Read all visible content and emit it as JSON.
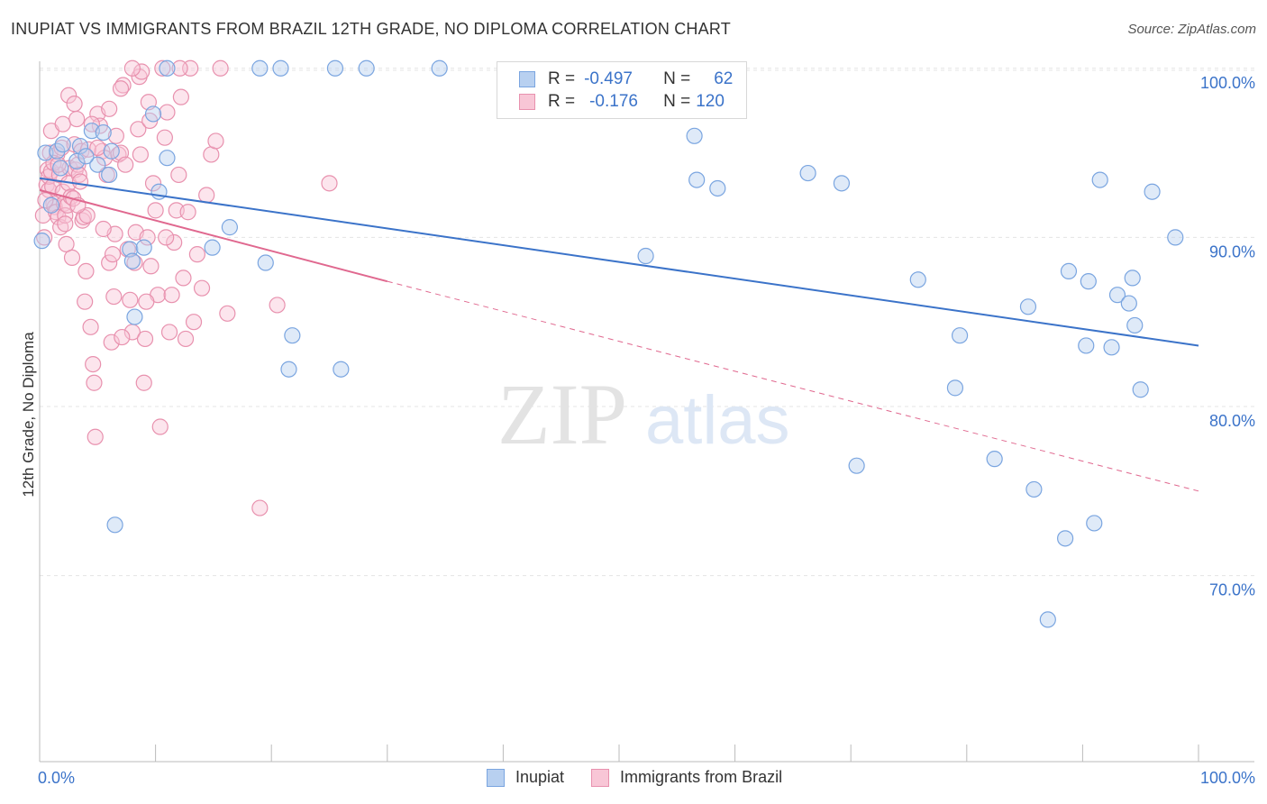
{
  "title": "INUPIAT VS IMMIGRANTS FROM BRAZIL 12TH GRADE, NO DIPLOMA CORRELATION CHART",
  "source": "Source: ZipAtlas.com",
  "legend_top": {
    "rows": [
      {
        "r_label": "R =",
        "r_value": "-0.497",
        "n_label": "N =",
        "n_value": "62"
      },
      {
        "r_label": "R =",
        "r_value": "-0.176",
        "n_label": "N =",
        "n_value": "120"
      }
    ]
  },
  "colors": {
    "inupiat_fill": "#b8d0f0",
    "inupiat_stroke": "#7aa5e0",
    "inupiat_line": "#3b73c9",
    "brazil_fill": "#f8c6d6",
    "brazil_stroke": "#e891ae",
    "brazil_line": "#e0688f",
    "value_text": "#3b73c9"
  },
  "chart_data": {
    "type": "scatter",
    "title": "INUPIAT VS IMMIGRANTS FROM BRAZIL 12TH GRADE, NO DIPLOMA CORRELATION CHART",
    "xlabel": "",
    "ylabel": "12th Grade, No Diploma",
    "xlim": [
      0,
      100
    ],
    "ylim": [
      59,
      101
    ],
    "x_tick_labels": [
      "0.0%",
      "100.0%"
    ],
    "y_ticks": [
      70,
      80,
      90,
      100
    ],
    "y_tick_labels": [
      "70.0%",
      "80.0%",
      "90.0%",
      "100.0%"
    ],
    "watermark": {
      "zip": "ZIP",
      "atlas": "atlas"
    },
    "series": [
      {
        "name": "Inupiat",
        "points": [
          [
            0.2,
            89.8
          ],
          [
            0.5,
            95.0
          ],
          [
            1.0,
            91.9
          ],
          [
            1.5,
            95.1
          ],
          [
            1.8,
            94.1
          ],
          [
            2.0,
            95.5
          ],
          [
            3.5,
            95.4
          ],
          [
            4.5,
            96.3
          ],
          [
            5.0,
            94.3
          ],
          [
            6.0,
            93.7
          ],
          [
            6.2,
            95.1
          ],
          [
            6.5,
            73.0
          ],
          [
            7.8,
            89.3
          ],
          [
            8.0,
            88.6
          ],
          [
            8.2,
            85.3
          ],
          [
            9.0,
            89.4
          ],
          [
            9.8,
            97.3
          ],
          [
            10.3,
            92.7
          ],
          [
            11.0,
            94.7
          ],
          [
            11.0,
            100.0
          ],
          [
            14.9,
            89.4
          ],
          [
            16.4,
            90.6
          ],
          [
            19.0,
            100.0
          ],
          [
            19.5,
            88.5
          ],
          [
            20.8,
            100.0
          ],
          [
            21.5,
            82.2
          ],
          [
            21.8,
            84.2
          ],
          [
            25.5,
            100.0
          ],
          [
            26.0,
            82.2
          ],
          [
            28.2,
            100.0
          ],
          [
            34.5,
            100.0
          ],
          [
            52.3,
            88.9
          ],
          [
            56.5,
            96.0
          ],
          [
            56.7,
            93.4
          ],
          [
            58.5,
            92.9
          ],
          [
            66.3,
            93.8
          ],
          [
            69.2,
            93.2
          ],
          [
            70.5,
            76.5
          ],
          [
            75.8,
            87.5
          ],
          [
            79.0,
            81.1
          ],
          [
            79.4,
            84.2
          ],
          [
            82.4,
            76.9
          ],
          [
            85.3,
            85.9
          ],
          [
            85.8,
            75.1
          ],
          [
            88.5,
            72.2
          ],
          [
            88.8,
            88.0
          ],
          [
            90.5,
            87.4
          ],
          [
            90.3,
            83.6
          ],
          [
            91.0,
            73.1
          ],
          [
            91.5,
            93.4
          ],
          [
            92.5,
            83.5
          ],
          [
            93.0,
            86.6
          ],
          [
            94.0,
            86.1
          ],
          [
            94.5,
            84.8
          ],
          [
            94.3,
            87.6
          ],
          [
            95.0,
            81.0
          ],
          [
            98.0,
            90.0
          ],
          [
            96.0,
            92.7
          ],
          [
            87.0,
            67.4
          ],
          [
            3.2,
            94.5
          ],
          [
            5.5,
            96.2
          ],
          [
            4.0,
            94.8
          ]
        ]
      },
      {
        "name": "Immigrants from Brazil",
        "points": [
          [
            0.3,
            91.3
          ],
          [
            0.4,
            90.0
          ],
          [
            0.6,
            93.1
          ],
          [
            0.7,
            94.0
          ],
          [
            0.8,
            92.8
          ],
          [
            0.8,
            93.6
          ],
          [
            0.9,
            95.0
          ],
          [
            1.0,
            93.9
          ],
          [
            1.1,
            93.0
          ],
          [
            1.2,
            92.0
          ],
          [
            1.3,
            91.8
          ],
          [
            1.4,
            91.5
          ],
          [
            1.5,
            94.9
          ],
          [
            1.6,
            91.2
          ],
          [
            1.7,
            93.7
          ],
          [
            1.8,
            90.6
          ],
          [
            1.9,
            95.3
          ],
          [
            2.0,
            92.7
          ],
          [
            2.1,
            92.0
          ],
          [
            2.2,
            91.3
          ],
          [
            2.3,
            89.6
          ],
          [
            2.4,
            91.9
          ],
          [
            2.5,
            93.2
          ],
          [
            2.6,
            94.1
          ],
          [
            2.7,
            92.4
          ],
          [
            2.8,
            88.8
          ],
          [
            2.9,
            92.3
          ],
          [
            3.0,
            95.5
          ],
          [
            3.1,
            94.0
          ],
          [
            3.2,
            97.0
          ],
          [
            3.3,
            94.3
          ],
          [
            3.4,
            93.7
          ],
          [
            3.5,
            93.3
          ],
          [
            3.6,
            95.1
          ],
          [
            3.7,
            91.0
          ],
          [
            3.8,
            91.2
          ],
          [
            3.9,
            86.2
          ],
          [
            4.0,
            88.0
          ],
          [
            4.2,
            95.2
          ],
          [
            4.4,
            84.7
          ],
          [
            4.6,
            82.5
          ],
          [
            4.7,
            81.4
          ],
          [
            4.8,
            78.2
          ],
          [
            5.0,
            97.3
          ],
          [
            5.2,
            96.6
          ],
          [
            5.4,
            95.1
          ],
          [
            5.6,
            94.7
          ],
          [
            5.8,
            93.7
          ],
          [
            6.0,
            88.5
          ],
          [
            6.2,
            83.8
          ],
          [
            6.4,
            86.5
          ],
          [
            6.5,
            90.2
          ],
          [
            6.6,
            96.0
          ],
          [
            6.8,
            94.9
          ],
          [
            7.0,
            95.0
          ],
          [
            7.2,
            99.0
          ],
          [
            7.4,
            94.3
          ],
          [
            7.6,
            89.3
          ],
          [
            7.8,
            86.3
          ],
          [
            8.0,
            84.4
          ],
          [
            8.2,
            88.5
          ],
          [
            8.3,
            90.3
          ],
          [
            8.5,
            96.4
          ],
          [
            8.6,
            99.5
          ],
          [
            8.7,
            94.9
          ],
          [
            8.8,
            99.8
          ],
          [
            9.0,
            81.4
          ],
          [
            9.1,
            84.0
          ],
          [
            9.3,
            90.0
          ],
          [
            9.4,
            98.0
          ],
          [
            9.5,
            96.9
          ],
          [
            9.6,
            88.3
          ],
          [
            9.8,
            93.2
          ],
          [
            10.0,
            91.6
          ],
          [
            10.2,
            86.6
          ],
          [
            10.4,
            78.8
          ],
          [
            10.6,
            100.0
          ],
          [
            10.8,
            95.9
          ],
          [
            11.0,
            97.4
          ],
          [
            11.2,
            84.4
          ],
          [
            11.4,
            86.6
          ],
          [
            11.6,
            89.7
          ],
          [
            11.8,
            91.6
          ],
          [
            12.0,
            93.7
          ],
          [
            12.2,
            98.3
          ],
          [
            12.4,
            87.6
          ],
          [
            12.6,
            84.0
          ],
          [
            12.8,
            91.5
          ],
          [
            13.0,
            100.0
          ],
          [
            13.3,
            85.0
          ],
          [
            13.6,
            89.0
          ],
          [
            14.0,
            87.0
          ],
          [
            14.4,
            92.5
          ],
          [
            14.8,
            94.9
          ],
          [
            15.2,
            95.7
          ],
          [
            15.6,
            100.0
          ],
          [
            16.2,
            85.5
          ],
          [
            19.0,
            74.0
          ],
          [
            20.5,
            86.0
          ],
          [
            25.0,
            93.2
          ],
          [
            1.0,
            96.3
          ],
          [
            1.2,
            94.4
          ],
          [
            2.0,
            96.7
          ],
          [
            2.5,
            98.4
          ],
          [
            3.0,
            97.9
          ],
          [
            4.5,
            96.7
          ],
          [
            5.0,
            95.3
          ],
          [
            6.0,
            97.6
          ],
          [
            7.0,
            98.8
          ],
          [
            8.0,
            100.0
          ],
          [
            5.5,
            90.5
          ],
          [
            6.3,
            89.0
          ],
          [
            7.1,
            84.1
          ],
          [
            4.1,
            91.3
          ],
          [
            3.3,
            91.9
          ],
          [
            2.2,
            90.8
          ],
          [
            1.6,
            94.3
          ],
          [
            0.5,
            92.2
          ],
          [
            12.1,
            100.0
          ],
          [
            9.2,
            86.2
          ],
          [
            10.9,
            90.0
          ]
        ]
      }
    ],
    "trend_lines": [
      {
        "series": "Inupiat",
        "x_start": 0,
        "y_start": 93.5,
        "x_end": 100,
        "y_end": 83.6,
        "style": "solid"
      },
      {
        "series": "Immigrants from Brazil",
        "x_start": 0,
        "y_start": 92.8,
        "x_end": 30,
        "y_end": 87.4,
        "style": "solid"
      },
      {
        "series": "Immigrants from Brazil",
        "x_start": 30,
        "y_start": 87.4,
        "x_end": 100,
        "y_end": 75.0,
        "style": "dashed"
      }
    ],
    "legend": [
      "Inupiat",
      "Immigrants from Brazil"
    ]
  }
}
